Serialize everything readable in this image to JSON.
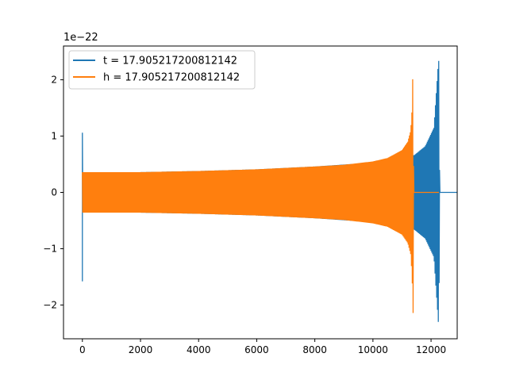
{
  "chart_data": {
    "type": "line",
    "title": "",
    "xlabel": "",
    "ylabel": "",
    "y_offset_label": "1e−22",
    "y_scale_factor": 1e-22,
    "xlim": [
      -650,
      12900
    ],
    "ylim": [
      -2.6,
      2.6
    ],
    "xticks": [
      0,
      2000,
      4000,
      6000,
      8000,
      10000,
      12000
    ],
    "yticks": [
      -2,
      -1,
      0,
      1,
      2
    ],
    "ytick_labels": [
      "−2",
      "−1",
      "0",
      "1",
      "2"
    ],
    "grid": false,
    "legend_position": "upper-left",
    "series": [
      {
        "name": "t = 17.905217200812142",
        "color": "#1f77b4",
        "description_points": {
          "x": [
            0,
            0,
            0,
            120,
            2000,
            4000,
            6000,
            8000,
            10000,
            11000,
            11400,
            11420,
            11800,
            12100,
            12250,
            12270,
            12290,
            12300,
            12900
          ],
          "upper": [
            1.06,
            0.35,
            0.36,
            0.35,
            0.36,
            0.38,
            0.41,
            0.46,
            0.53,
            0.63,
            0.66,
            0.66,
            0.82,
            1.15,
            2.3,
            2.35,
            0.5,
            0.0,
            0.0
          ],
          "lower": [
            -1.58,
            -0.35,
            -0.36,
            -0.35,
            -0.36,
            -0.38,
            -0.41,
            -0.46,
            -0.53,
            -0.63,
            -0.66,
            -0.66,
            -0.82,
            -1.15,
            -2.3,
            -2.35,
            -0.5,
            0.0,
            0.0
          ]
        }
      },
      {
        "name": "h = 17.905217200812142",
        "color": "#ff7f0e",
        "description_points": {
          "x": [
            0,
            2000,
            4000,
            6000,
            8000,
            9000,
            10000,
            10500,
            11000,
            11200,
            11300,
            11350,
            11380,
            11400,
            11420,
            12270
          ],
          "upper": [
            0.36,
            0.36,
            0.38,
            0.41,
            0.46,
            0.49,
            0.55,
            0.61,
            0.75,
            0.9,
            1.1,
            1.5,
            2.35,
            0.0,
            0.0,
            0.0
          ],
          "lower": [
            -0.36,
            -0.36,
            -0.38,
            -0.41,
            -0.46,
            -0.49,
            -0.55,
            -0.61,
            -0.75,
            -0.9,
            -1.1,
            -1.5,
            -2.38,
            0.0,
            0.0,
            0.0
          ]
        }
      }
    ]
  }
}
